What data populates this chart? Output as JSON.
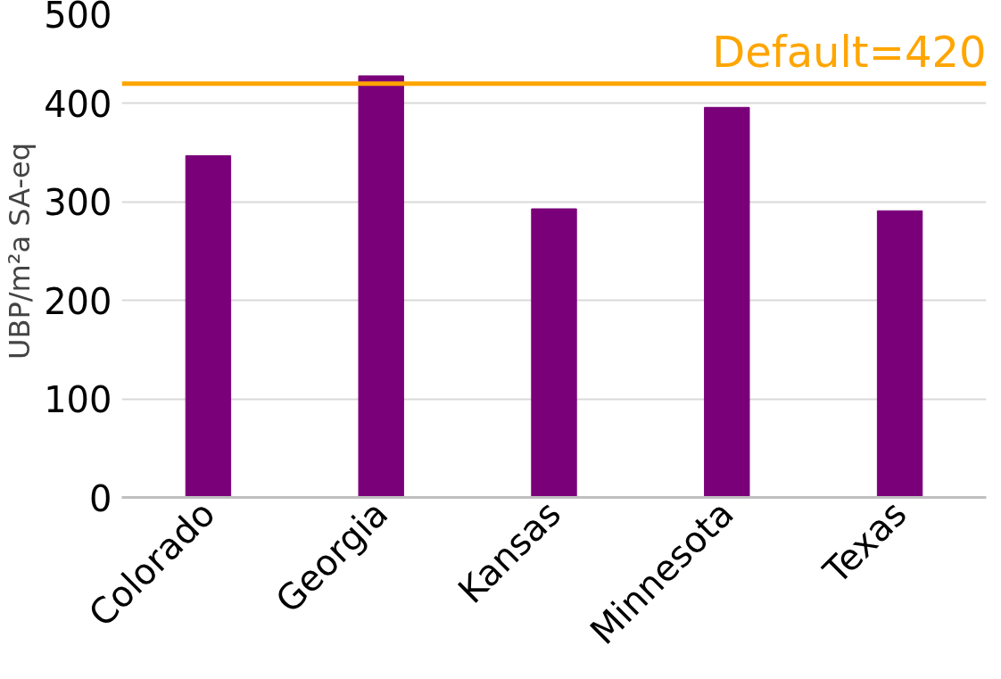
{
  "chart_data": {
    "type": "bar",
    "ylabel": "UBP/m²a SA-eq",
    "categories": [
      "Colorado",
      "Georgia",
      "Kansas",
      "Minnesota",
      "Texas"
    ],
    "values": [
      347,
      428,
      293,
      396,
      291
    ],
    "color": "#7a007a",
    "ylim": [
      0,
      500
    ],
    "yticks": [
      0,
      100,
      200,
      300,
      400,
      500
    ],
    "grid": "y",
    "ref_lines": [
      {
        "axis": "y",
        "value": 420,
        "label": "Default=420",
        "color": "#ffa500"
      }
    ]
  }
}
